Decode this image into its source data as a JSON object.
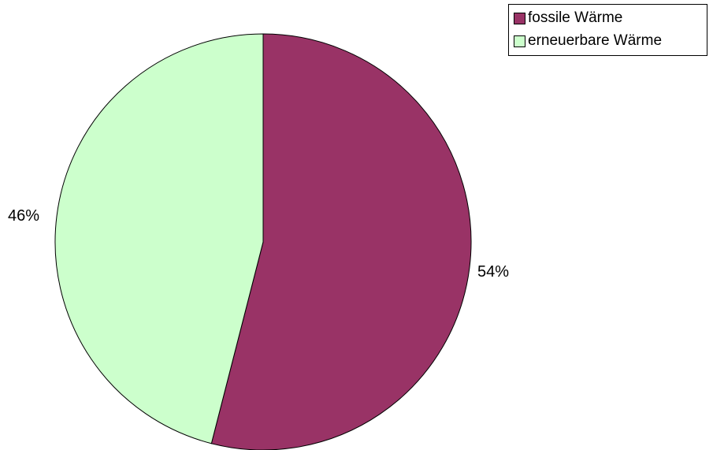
{
  "chart_data": {
    "type": "pie",
    "title": "",
    "slices": [
      {
        "label": "fossile Wärme",
        "value": 54,
        "value_label": "54%",
        "color": "#993366"
      },
      {
        "label": "erneuerbare Wärme",
        "value": 46,
        "value_label": "46%",
        "color": "#ccffcc"
      }
    ],
    "legend_position": "top-right",
    "start_angle_deg": 0,
    "direction": "clockwise"
  }
}
